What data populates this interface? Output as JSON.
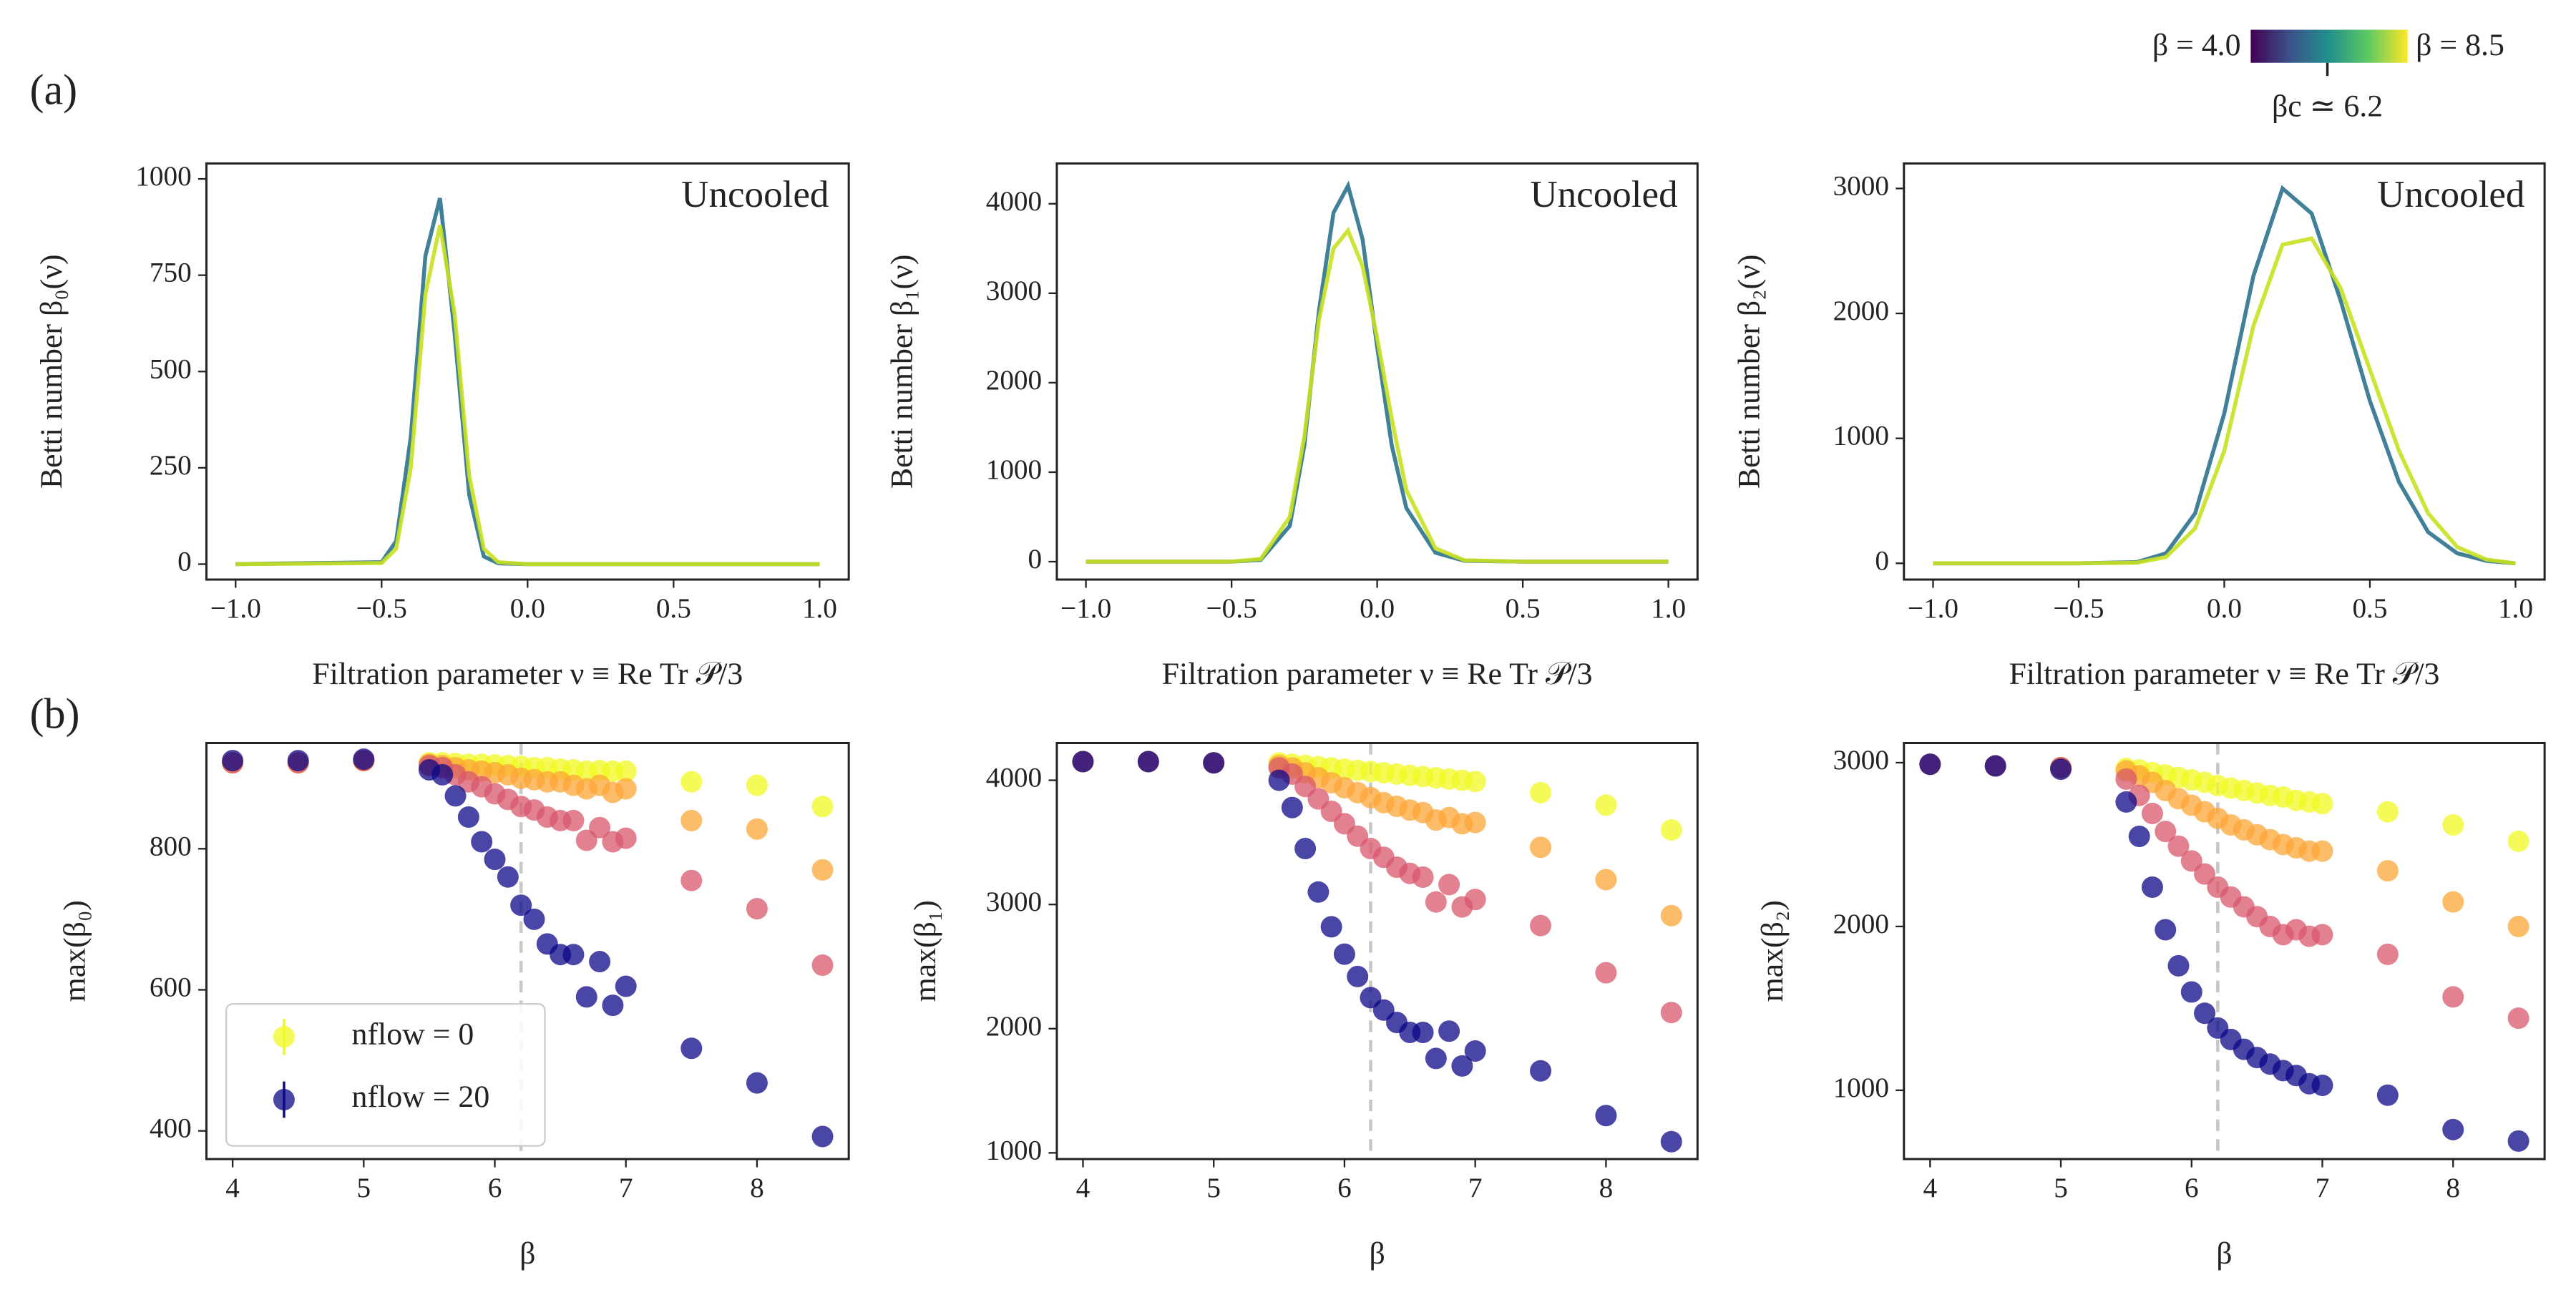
{
  "panel_labels": [
    "(a)",
    "(b)"
  ],
  "colorbar": {
    "low_label": "β = 4.0",
    "high_label": "β = 8.5",
    "critical_label": "βc ≃ 6.2",
    "range": [
      4.0,
      8.5
    ],
    "critical": 6.2
  },
  "chart_data": [
    {
      "type": "line",
      "annotation": "Uncooled",
      "x_label": "Filtration parameter ν ≡ Re Tr 𝒫/3",
      "y_label": "Betti number β₀(ν)",
      "x": [
        -1,
        -0.5,
        -0.45,
        -0.4,
        -0.35,
        -0.3,
        -0.25,
        -0.2,
        -0.15,
        -0.1,
        0,
        0.5,
        1
      ],
      "series": [
        {
          "color": "#2c728e",
          "values": [
            0,
            5,
            60,
            330,
            800,
            950,
            600,
            180,
            20,
            2,
            0,
            0,
            0
          ]
        },
        {
          "color": "#c8e020",
          "values": [
            0,
            3,
            40,
            250,
            700,
            880,
            650,
            230,
            40,
            5,
            0,
            0,
            0
          ]
        }
      ],
      "xlim": [
        -1.1,
        1.1
      ],
      "xticks": [
        {
          "value": -1,
          "label": "−1.0"
        },
        {
          "value": -0.5,
          "label": "−0.5"
        },
        {
          "value": 0,
          "label": "0.0"
        },
        0.5,
        {
          "value": 1,
          "label": "1.0"
        }
      ],
      "ylim": [
        -40,
        1040
      ],
      "yticks": [
        0,
        250,
        500,
        750,
        1000
      ]
    },
    {
      "type": "line",
      "annotation": "Uncooled",
      "x_label": "Filtration parameter ν ≡ Re Tr 𝒫/3",
      "y_label": "Betti number β₁(ν)",
      "x": [
        -1,
        -0.5,
        -0.4,
        -0.3,
        -0.25,
        -0.2,
        -0.15,
        -0.1,
        -0.05,
        0,
        0.05,
        0.1,
        0.2,
        0.3,
        0.5,
        1
      ],
      "series": [
        {
          "color": "#2c728e",
          "values": [
            0,
            0,
            20,
            400,
            1300,
            2800,
            3900,
            4200,
            3600,
            2400,
            1300,
            600,
            100,
            10,
            0,
            0
          ]
        },
        {
          "color": "#c8e020",
          "values": [
            0,
            0,
            30,
            500,
            1400,
            2700,
            3500,
            3700,
            3300,
            2500,
            1600,
            800,
            150,
            15,
            0,
            0
          ]
        }
      ],
      "xlim": [
        -1.1,
        1.1
      ],
      "xticks": [
        {
          "value": -1,
          "label": "−1.0"
        },
        {
          "value": -0.5,
          "label": "−0.5"
        },
        {
          "value": 0,
          "label": "0.0"
        },
        0.5,
        {
          "value": 1,
          "label": "1.0"
        }
      ],
      "ylim": [
        -200,
        4450
      ],
      "yticks": [
        0,
        1000,
        2000,
        3000,
        4000
      ]
    },
    {
      "type": "line",
      "annotation": "Uncooled",
      "x_label": "Filtration parameter ν ≡ Re Tr 𝒫/3",
      "y_label": "Betti number β₂(ν)",
      "x": [
        -1,
        -0.5,
        -0.3,
        -0.2,
        -0.1,
        0,
        0.1,
        0.2,
        0.3,
        0.4,
        0.5,
        0.6,
        0.7,
        0.8,
        0.9,
        1
      ],
      "series": [
        {
          "color": "#2c728e",
          "values": [
            0,
            0,
            10,
            80,
            400,
            1200,
            2300,
            3000,
            2800,
            2100,
            1300,
            650,
            250,
            80,
            20,
            0
          ]
        },
        {
          "color": "#c8e020",
          "values": [
            0,
            0,
            5,
            50,
            280,
            900,
            1900,
            2550,
            2600,
            2200,
            1550,
            900,
            400,
            130,
            30,
            0
          ]
        }
      ],
      "xlim": [
        -1.1,
        1.1
      ],
      "xticks": [
        {
          "value": -1,
          "label": "−1.0"
        },
        {
          "value": -0.5,
          "label": "−0.5"
        },
        {
          "value": 0,
          "label": "0.0"
        },
        0.5,
        {
          "value": 1,
          "label": "1.0"
        }
      ],
      "ylim": [
        -130,
        3200
      ],
      "yticks": [
        0,
        1000,
        2000,
        3000
      ]
    },
    {
      "type": "scatter",
      "x_label": "β",
      "y_label": "max(β₀)",
      "vline": 6.2,
      "legend": "lower left",
      "x": [
        4,
        4.5,
        5,
        5.5,
        5.6,
        5.7,
        5.8,
        5.9,
        6.0,
        6.1,
        6.2,
        6.3,
        6.4,
        6.5,
        6.6,
        6.7,
        6.8,
        6.9,
        7.0,
        7.5,
        8.0,
        8.5
      ],
      "series": [
        {
          "name": "nflow = 0",
          "color": "#f0f921",
          "values": [
            922,
            922,
            925,
            922,
            922,
            921,
            920,
            920,
            919,
            918,
            917,
            915,
            915,
            913,
            912,
            910,
            911,
            910,
            910,
            895,
            890,
            860
          ]
        },
        {
          "color": "#fca636",
          "values": [
            922,
            922,
            925,
            920,
            918,
            915,
            912,
            910,
            908,
            905,
            900,
            898,
            895,
            895,
            890,
            885,
            890,
            880,
            885,
            840,
            828,
            770
          ]
        },
        {
          "color": "#d8576b",
          "values": [
            922,
            922,
            925,
            918,
            915,
            905,
            895,
            888,
            878,
            870,
            860,
            855,
            845,
            840,
            840,
            812,
            830,
            810,
            815,
            755,
            715,
            635
          ]
        },
        {
          "name": "nflow = 20",
          "color": "#0d0887",
          "values": [
            925,
            925,
            927,
            912,
            905,
            875,
            845,
            810,
            785,
            760,
            720,
            700,
            665,
            650,
            650,
            590,
            640,
            578,
            605,
            517,
            468,
            392
          ]
        }
      ],
      "xlim": [
        3.8,
        8.7
      ],
      "xticks": [
        4,
        5,
        6,
        7,
        8
      ],
      "ylim": [
        360,
        950
      ],
      "yticks": [
        400,
        600,
        800
      ]
    },
    {
      "type": "scatter",
      "x_label": "β",
      "y_label": "max(β₁)",
      "vline": 6.2,
      "x": [
        4,
        4.5,
        5,
        5.5,
        5.6,
        5.7,
        5.8,
        5.9,
        6.0,
        6.1,
        6.2,
        6.3,
        6.4,
        6.5,
        6.6,
        6.7,
        6.8,
        6.9,
        7.0,
        7.5,
        8.0,
        8.5
      ],
      "series": [
        {
          "color": "#f0f921",
          "values": [
            4150,
            4150,
            4140,
            4140,
            4130,
            4120,
            4110,
            4100,
            4090,
            4080,
            4070,
            4060,
            4050,
            4040,
            4030,
            4020,
            4010,
            4000,
            3990,
            3900,
            3800,
            3600
          ]
        },
        {
          "color": "#fca636",
          "values": [
            4150,
            4150,
            4140,
            4120,
            4100,
            4060,
            4020,
            3980,
            3940,
            3900,
            3860,
            3820,
            3790,
            3760,
            3740,
            3680,
            3700,
            3650,
            3660,
            3460,
            3200,
            2910
          ]
        },
        {
          "color": "#d8576b",
          "values": [
            4150,
            4150,
            4140,
            4100,
            4050,
            3950,
            3850,
            3750,
            3650,
            3550,
            3450,
            3380,
            3300,
            3250,
            3220,
            3020,
            3160,
            2980,
            3040,
            2830,
            2450,
            2130
          ]
        },
        {
          "color": "#0d0887",
          "values": [
            4150,
            4150,
            4140,
            4000,
            3780,
            3450,
            3100,
            2820,
            2600,
            2420,
            2250,
            2150,
            2050,
            1970,
            1970,
            1760,
            1980,
            1700,
            1820,
            1660,
            1300,
            1090
          ]
        }
      ],
      "xlim": [
        3.8,
        8.7
      ],
      "xticks": [
        4,
        5,
        6,
        7,
        8
      ],
      "ylim": [
        950,
        4300
      ],
      "yticks": [
        1000,
        2000,
        3000,
        4000
      ]
    },
    {
      "type": "scatter",
      "x_label": "β",
      "y_label": "max(β₂)",
      "vline": 6.2,
      "x": [
        4,
        4.5,
        5,
        5.5,
        5.6,
        5.7,
        5.8,
        5.9,
        6.0,
        6.1,
        6.2,
        6.3,
        6.4,
        6.5,
        6.6,
        6.7,
        6.8,
        6.9,
        7.0,
        7.5,
        8.0,
        8.5
      ],
      "series": [
        {
          "color": "#f0f921",
          "values": [
            2990,
            2980,
            2970,
            2965,
            2955,
            2940,
            2925,
            2910,
            2895,
            2880,
            2860,
            2845,
            2830,
            2815,
            2800,
            2790,
            2770,
            2760,
            2750,
            2700,
            2620,
            2520
          ]
        },
        {
          "color": "#fca636",
          "values": [
            2990,
            2980,
            2970,
            2950,
            2920,
            2880,
            2830,
            2780,
            2740,
            2700,
            2660,
            2620,
            2590,
            2560,
            2530,
            2500,
            2480,
            2460,
            2460,
            2340,
            2150,
            2000
          ]
        },
        {
          "color": "#d8576b",
          "values": [
            2990,
            2980,
            2970,
            2900,
            2800,
            2690,
            2580,
            2490,
            2400,
            2320,
            2240,
            2180,
            2120,
            2060,
            2000,
            1950,
            1980,
            1940,
            1950,
            1830,
            1570,
            1440
          ]
        },
        {
          "color": "#0d0887",
          "values": [
            2990,
            2980,
            2960,
            2760,
            2550,
            2240,
            1980,
            1760,
            1600,
            1470,
            1380,
            1310,
            1250,
            1200,
            1160,
            1120,
            1090,
            1040,
            1030,
            970,
            760,
            690
          ]
        }
      ],
      "xlim": [
        3.8,
        8.7
      ],
      "xticks": [
        4,
        5,
        6,
        7,
        8
      ],
      "ylim": [
        580,
        3120
      ],
      "yticks": [
        1000,
        2000,
        3000
      ]
    }
  ]
}
